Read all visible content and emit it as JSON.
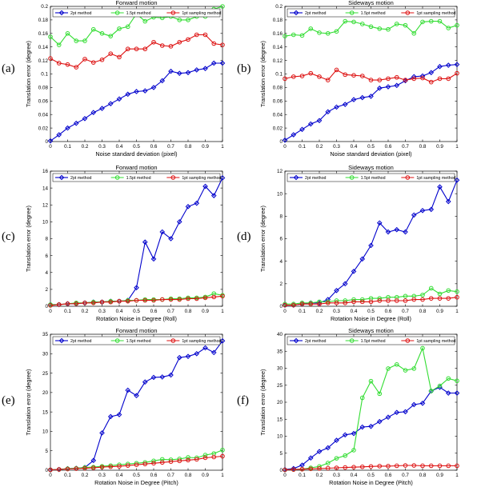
{
  "colors": {
    "2pt": "#0000cc",
    "1_5pt": "#33dd33",
    "1pt": "#dd1111"
  },
  "chart_data": [
    {
      "type": "line",
      "panel_letter": "(a)",
      "title": "Forward motion",
      "xlabel": "Noise standard deviation (pixel)",
      "ylabel": "Translation error (degree)",
      "xlim": [
        0,
        1
      ],
      "ylim": [
        0,
        0.2
      ],
      "xticks": [
        "0",
        "0.1",
        "0.2",
        "0.3",
        "0.4",
        "0.5",
        "0.6",
        "0.7",
        "0.8",
        "0.9",
        "1"
      ],
      "yticks": [
        "0",
        "0.02",
        "0.04",
        "0.06",
        "0.08",
        "0.1",
        "0.12",
        "0.14",
        "0.16",
        "0.18",
        "0.2"
      ],
      "grid": false,
      "legend_position": "top",
      "x": [
        0,
        0.05,
        0.1,
        0.15,
        0.2,
        0.25,
        0.3,
        0.35,
        0.4,
        0.45,
        0.5,
        0.55,
        0.6,
        0.65,
        0.7,
        0.75,
        0.8,
        0.85,
        0.9,
        0.95,
        1
      ],
      "series": [
        {
          "name": "2pt method",
          "color_key": "2pt",
          "marker": "diamond",
          "values": [
            0.001,
            0.01,
            0.02,
            0.027,
            0.034,
            0.043,
            0.049,
            0.056,
            0.063,
            0.07,
            0.074,
            0.075,
            0.08,
            0.09,
            0.104,
            0.101,
            0.102,
            0.106,
            0.108,
            0.116,
            0.116
          ]
        },
        {
          "name": "1.5pt method",
          "color_key": "1_5pt",
          "marker": "circle",
          "values": [
            0.155,
            0.143,
            0.16,
            0.149,
            0.149,
            0.166,
            0.16,
            0.156,
            0.167,
            0.17,
            0.189,
            0.178,
            0.184,
            0.183,
            0.185,
            0.18,
            0.18,
            0.185,
            0.185,
            0.196,
            0.2
          ]
        },
        {
          "name": "1pt sampling method",
          "color_key": "1pt",
          "marker": "circle",
          "values": [
            0.123,
            0.116,
            0.114,
            0.11,
            0.122,
            0.117,
            0.121,
            0.13,
            0.125,
            0.137,
            0.137,
            0.137,
            0.147,
            0.142,
            0.141,
            0.147,
            0.151,
            0.158,
            0.158,
            0.145,
            0.143
          ]
        }
      ]
    },
    {
      "type": "line",
      "panel_letter": "(b)",
      "title": "Sideways motion",
      "xlabel": "Noise standard deviation (pixel)",
      "ylabel": "Translation error (degree)",
      "xlim": [
        0,
        1
      ],
      "ylim": [
        0,
        0.2
      ],
      "xticks": [
        "0",
        "0.1",
        "0.2",
        "0.3",
        "0.4",
        "0.5",
        "0.6",
        "0.7",
        "0.8",
        "0.9",
        "1"
      ],
      "yticks": [
        "0",
        "0.02",
        "0.04",
        "0.06",
        "0.08",
        "0.1",
        "0.12",
        "0.14",
        "0.16",
        "0.18",
        "0.2"
      ],
      "grid": false,
      "legend_position": "top",
      "x": [
        0,
        0.05,
        0.1,
        0.15,
        0.2,
        0.25,
        0.3,
        0.35,
        0.4,
        0.45,
        0.5,
        0.55,
        0.6,
        0.65,
        0.7,
        0.75,
        0.8,
        0.85,
        0.9,
        0.95,
        1
      ],
      "series": [
        {
          "name": "2pt method",
          "color_key": "2pt",
          "marker": "diamond",
          "values": [
            0.002,
            0.01,
            0.018,
            0.026,
            0.031,
            0.044,
            0.051,
            0.055,
            0.062,
            0.065,
            0.067,
            0.079,
            0.081,
            0.083,
            0.09,
            0.096,
            0.097,
            0.102,
            0.111,
            0.113,
            0.114
          ]
        },
        {
          "name": "1.5pt method",
          "color_key": "1_5pt",
          "marker": "circle",
          "values": [
            0.156,
            0.158,
            0.157,
            0.167,
            0.161,
            0.16,
            0.163,
            0.178,
            0.177,
            0.174,
            0.17,
            0.167,
            0.166,
            0.174,
            0.172,
            0.16,
            0.177,
            0.178,
            0.178,
            0.168,
            0.172
          ]
        },
        {
          "name": "1pt sampling method",
          "color_key": "1pt",
          "marker": "circle",
          "values": [
            0.093,
            0.096,
            0.097,
            0.101,
            0.096,
            0.091,
            0.106,
            0.099,
            0.098,
            0.097,
            0.091,
            0.091,
            0.093,
            0.095,
            0.091,
            0.093,
            0.094,
            0.088,
            0.093,
            0.093,
            0.101
          ]
        }
      ]
    },
    {
      "type": "line",
      "panel_letter": "(c)",
      "title": "Forward motion",
      "xlabel": "Rotation Noise in Degree (Roll)",
      "ylabel": "Translation error (degree)",
      "xlim": [
        0,
        1
      ],
      "ylim": [
        0,
        16
      ],
      "xticks": [
        "0",
        "0.1",
        "0.2",
        "0.3",
        "0.4",
        "0.5",
        "0.6",
        "0.7",
        "0.8",
        "0.9",
        "1"
      ],
      "yticks": [
        "0",
        "2",
        "4",
        "6",
        "8",
        "10",
        "12",
        "14",
        "16"
      ],
      "grid": false,
      "legend_position": "top",
      "x": [
        0,
        0.05,
        0.1,
        0.15,
        0.2,
        0.25,
        0.3,
        0.35,
        0.4,
        0.45,
        0.5,
        0.55,
        0.6,
        0.65,
        0.7,
        0.75,
        0.8,
        0.85,
        0.9,
        0.95,
        1
      ],
      "series": [
        {
          "name": "2pt method",
          "color_key": "2pt",
          "marker": "diamond",
          "values": [
            0.2,
            0.2,
            0.3,
            0.3,
            0.4,
            0.5,
            0.5,
            0.6,
            0.6,
            0.7,
            2.2,
            7.6,
            5.6,
            8.8,
            8.0,
            10.0,
            11.8,
            12.2,
            14.2,
            13.1,
            15.2
          ]
        },
        {
          "name": "1.5pt method",
          "color_key": "1_5pt",
          "marker": "circle",
          "values": [
            0.2,
            0.2,
            0.3,
            0.4,
            0.4,
            0.5,
            0.5,
            0.6,
            0.6,
            0.7,
            0.7,
            0.8,
            0.8,
            0.8,
            0.9,
            0.9,
            1.0,
            1.0,
            1.1,
            1.5,
            1.3
          ]
        },
        {
          "name": "1pt sampling method",
          "color_key": "1pt",
          "marker": "circle",
          "values": [
            0.1,
            0.2,
            0.3,
            0.3,
            0.4,
            0.4,
            0.5,
            0.5,
            0.6,
            0.6,
            0.7,
            0.7,
            0.7,
            0.8,
            0.8,
            0.8,
            0.9,
            0.9,
            1.0,
            1.1,
            1.2
          ]
        }
      ]
    },
    {
      "type": "line",
      "panel_letter": "(d)",
      "title": "Sideways motion",
      "xlabel": "Rotation Noise in Degree (Roll)",
      "ylabel": "Translation error (degree)",
      "xlim": [
        0,
        1
      ],
      "ylim": [
        0,
        12
      ],
      "xticks": [
        "0",
        "0.1",
        "0.2",
        "0.3",
        "0.4",
        "0.5",
        "0.6",
        "0.7",
        "0.8",
        "0.9",
        "1"
      ],
      "yticks": [
        "0",
        "2",
        "4",
        "6",
        "8",
        "10",
        "12"
      ],
      "grid": false,
      "legend_position": "top",
      "x": [
        0,
        0.05,
        0.1,
        0.15,
        0.2,
        0.25,
        0.3,
        0.35,
        0.4,
        0.45,
        0.5,
        0.55,
        0.6,
        0.65,
        0.7,
        0.75,
        0.8,
        0.85,
        0.9,
        0.95,
        1
      ],
      "series": [
        {
          "name": "2pt method",
          "color_key": "2pt",
          "marker": "diamond",
          "values": [
            0.1,
            0.1,
            0.2,
            0.3,
            0.3,
            0.6,
            1.4,
            2.0,
            3.1,
            4.2,
            5.4,
            7.4,
            6.6,
            6.8,
            6.6,
            8.1,
            8.5,
            8.6,
            10.6,
            9.3,
            11.2
          ]
        },
        {
          "name": "1.5pt method",
          "color_key": "1_5pt",
          "marker": "circle",
          "values": [
            0.2,
            0.2,
            0.3,
            0.3,
            0.4,
            0.4,
            0.5,
            0.5,
            0.6,
            0.6,
            0.7,
            0.7,
            0.8,
            0.8,
            0.9,
            0.9,
            1.0,
            1.6,
            1.1,
            1.4,
            1.3
          ]
        },
        {
          "name": "1pt sampling method",
          "color_key": "1pt",
          "marker": "circle",
          "values": [
            0.1,
            0.1,
            0.2,
            0.2,
            0.2,
            0.3,
            0.3,
            0.3,
            0.4,
            0.4,
            0.4,
            0.5,
            0.5,
            0.5,
            0.5,
            0.6,
            0.6,
            0.7,
            0.7,
            0.7,
            0.8
          ]
        }
      ]
    },
    {
      "type": "line",
      "panel_letter": "(e)",
      "title": "Forward motion",
      "xlabel": "Rotation Noise in Degree (Pitch)",
      "ylabel": "Translation error (degree)",
      "xlim": [
        0,
        1
      ],
      "ylim": [
        0,
        35
      ],
      "xticks": [
        "0",
        "0.1",
        "0.2",
        "0.3",
        "0.4",
        "0.5",
        "0.6",
        "0.7",
        "0.8",
        "0.9",
        "1"
      ],
      "yticks": [
        "0",
        "5",
        "10",
        "15",
        "20",
        "25",
        "30",
        "35"
      ],
      "grid": false,
      "legend_position": "top",
      "x": [
        0,
        0.05,
        0.1,
        0.15,
        0.2,
        0.25,
        0.3,
        0.35,
        0.4,
        0.45,
        0.5,
        0.55,
        0.6,
        0.65,
        0.7,
        0.75,
        0.8,
        0.85,
        0.9,
        0.95,
        1
      ],
      "series": [
        {
          "name": "2pt method",
          "color_key": "2pt",
          "marker": "diamond",
          "values": [
            0.1,
            0.2,
            0.4,
            0.5,
            0.7,
            2.5,
            9.6,
            13.8,
            14.3,
            20.6,
            19.2,
            22.7,
            23.9,
            24.0,
            24.5,
            29.0,
            29.3,
            30.0,
            31.5,
            30.3,
            33.3
          ]
        },
        {
          "name": "1.5pt method",
          "color_key": "1_5pt",
          "marker": "circle",
          "values": [
            0.1,
            0.2,
            0.4,
            0.5,
            0.7,
            0.8,
            1.0,
            1.2,
            1.4,
            1.6,
            1.8,
            2.0,
            2.4,
            2.8,
            2.7,
            2.9,
            3.3,
            3.2,
            3.9,
            4.3,
            5.2
          ]
        },
        {
          "name": "1pt sampling method",
          "color_key": "1pt",
          "marker": "circle",
          "values": [
            0.1,
            0.2,
            0.3,
            0.4,
            0.5,
            0.6,
            0.8,
            0.9,
            1.0,
            1.2,
            1.4,
            1.6,
            1.8,
            2.0,
            2.2,
            2.4,
            2.6,
            2.8,
            3.2,
            3.4,
            3.6
          ]
        }
      ]
    },
    {
      "type": "line",
      "panel_letter": "(f)",
      "title": "Sideways motion",
      "xlabel": "Rotation Noise in Degree (Pitch)",
      "ylabel": "Translation error (degree)",
      "xlim": [
        0,
        1
      ],
      "ylim": [
        0,
        40
      ],
      "xticks": [
        "0",
        "0.1",
        "0.2",
        "0.3",
        "0.4",
        "0.5",
        "0.6",
        "0.7",
        "0.8",
        "0.9",
        "1"
      ],
      "yticks": [
        "0",
        "5",
        "10",
        "15",
        "20",
        "25",
        "30",
        "35",
        "40"
      ],
      "grid": false,
      "legend_position": "top",
      "x": [
        0,
        0.05,
        0.1,
        0.15,
        0.2,
        0.25,
        0.3,
        0.35,
        0.4,
        0.45,
        0.5,
        0.55,
        0.6,
        0.65,
        0.7,
        0.75,
        0.8,
        0.85,
        0.9,
        0.95,
        1
      ],
      "series": [
        {
          "name": "2pt method",
          "color_key": "2pt",
          "marker": "diamond",
          "values": [
            0.2,
            0.5,
            1.5,
            3.6,
            5.5,
            6.6,
            8.8,
            10.4,
            10.8,
            12.7,
            12.9,
            14.3,
            15.6,
            17.0,
            17.2,
            19.3,
            19.7,
            23.3,
            24.4,
            22.7,
            22.7
          ]
        },
        {
          "name": "1.5pt method",
          "color_key": "1_5pt",
          "marker": "circle",
          "values": [
            0.1,
            0.2,
            0.3,
            0.7,
            1.1,
            2.1,
            3.5,
            4.3,
            5.9,
            21.3,
            26.2,
            22.5,
            29.9,
            31.1,
            29.4,
            29.9,
            35.9,
            23.3,
            24.8,
            27.0,
            26.3
          ]
        },
        {
          "name": "1pt sampling method",
          "color_key": "1pt",
          "marker": "circle",
          "values": [
            0.1,
            0.2,
            0.3,
            0.4,
            0.5,
            0.6,
            0.7,
            0.8,
            0.9,
            1.0,
            1.1,
            1.2,
            1.2,
            1.3,
            1.4,
            1.4,
            1.3,
            1.3,
            1.3,
            1.3,
            1.3
          ]
        }
      ]
    }
  ]
}
